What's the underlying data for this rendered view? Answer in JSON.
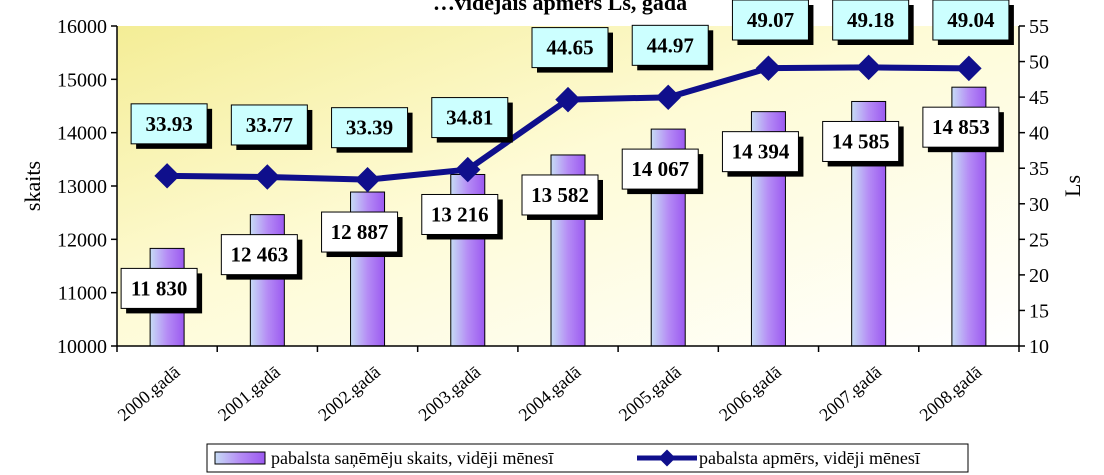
{
  "chart_data": {
    "type": "bar+line",
    "title": "…vidējais apmērs Ls, gadā",
    "categories": [
      "2000.gadā",
      "2001.gadā",
      "2002.gadā",
      "2003.gadā",
      "2004.gadā",
      "2005.gadā",
      "2006.gadā",
      "2007.gadā",
      "2008.gadā"
    ],
    "series": [
      {
        "name": "pabalsta  saņēmēju skaits, vidēji mēnesī",
        "kind": "bar",
        "axis": "left",
        "values": [
          11830,
          12463,
          12887,
          13216,
          13582,
          14067,
          14394,
          14585,
          14853
        ],
        "labels": [
          "11 830",
          "12 463",
          "12 887",
          "13 216",
          "13 582",
          "14 067",
          "14 394",
          "14 585",
          "14 853"
        ]
      },
      {
        "name": "pabalsta apmērs, vidēji mēnesī",
        "kind": "line",
        "axis": "right",
        "values": [
          33.93,
          33.77,
          33.39,
          34.81,
          44.65,
          44.97,
          49.07,
          49.18,
          49.04
        ],
        "labels": [
          "33.93",
          "33.77",
          "33.39",
          "34.81",
          "44.65",
          "44.97",
          "49.07",
          "49.18",
          "49.04"
        ]
      }
    ],
    "ylabel": "skaits",
    "y2label": "Ls",
    "ylim": [
      10000,
      16000
    ],
    "yticks": [
      "10000",
      "11000",
      "12000",
      "13000",
      "14000",
      "15000",
      "16000"
    ],
    "y2lim": [
      10,
      55
    ],
    "y2ticks": [
      "10",
      "15",
      "20",
      "25",
      "30",
      "35",
      "40",
      "45",
      "50",
      "55"
    ],
    "grid": false,
    "legend_position": "bottom",
    "colors": {
      "plot_background": "#fefbd6",
      "bar_light": "#c6dcf5",
      "bar_dark": "#9b59f0",
      "line": "#0f0f8c",
      "line_label_fill": "#ccffff",
      "bar_label_fill": "#ffffff"
    }
  }
}
